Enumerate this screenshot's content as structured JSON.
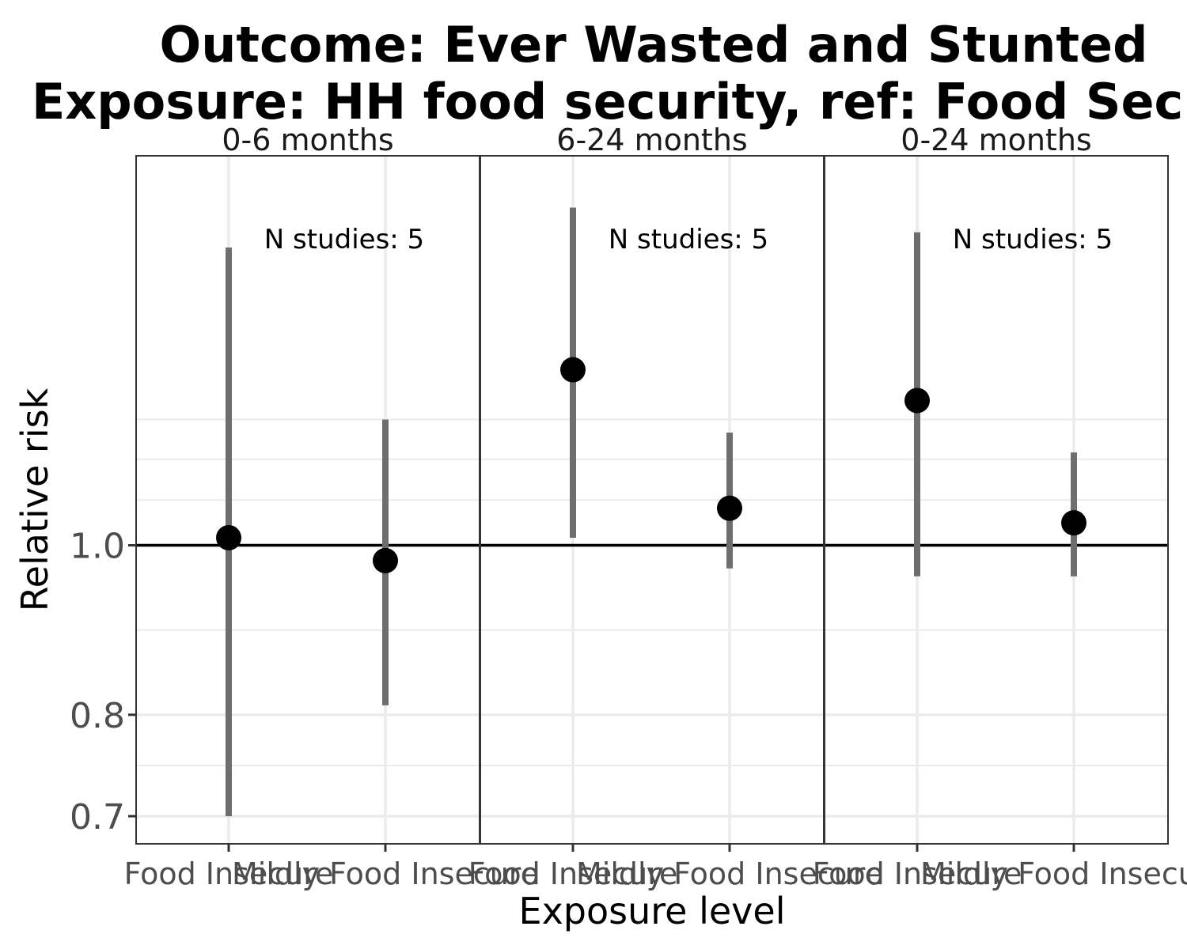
{
  "chart_data": {
    "type": "scatter",
    "title": "Outcome: Ever Wasted and Stunted",
    "subtitle": "Exposure: HH food security, ref: Food Secure",
    "xlabel": "Exposure level",
    "ylabel": "Relative risk",
    "y_scale": "log",
    "ylim": [
      0.675,
      1.67
    ],
    "y_ticks": [
      "0.7",
      "0.8",
      "1.0"
    ],
    "reference_line": 1.0,
    "grid": true,
    "categories": [
      "Food Insecure",
      "Mildly Food Insecure"
    ],
    "panels": [
      {
        "label": "0-6 months",
        "annotation": "N studies: 5",
        "points": [
          {
            "category": "Food Insecure",
            "rr": 1.01,
            "lower": 0.7,
            "upper": 1.48
          },
          {
            "category": "Mildly Food Insecure",
            "rr": 0.98,
            "lower": 0.81,
            "upper": 1.18
          }
        ]
      },
      {
        "label": "6-24 months",
        "annotation": "N studies: 5",
        "points": [
          {
            "category": "Food Insecure",
            "rr": 1.26,
            "lower": 1.01,
            "upper": 1.56
          },
          {
            "category": "Mildly Food Insecure",
            "rr": 1.05,
            "lower": 0.97,
            "upper": 1.16
          }
        ]
      },
      {
        "label": "0-24 months",
        "annotation": "N studies: 5",
        "points": [
          {
            "category": "Food Insecure",
            "rr": 1.21,
            "lower": 0.96,
            "upper": 1.51
          },
          {
            "category": "Mildly Food Insecure",
            "rr": 1.03,
            "lower": 0.96,
            "upper": 1.13
          }
        ]
      }
    ],
    "colors": {
      "point": "#000000",
      "ci_line": "#6e6e6e",
      "reference_line": "#000000",
      "grid": "#ebebeb",
      "panel_border": "#333333"
    }
  }
}
